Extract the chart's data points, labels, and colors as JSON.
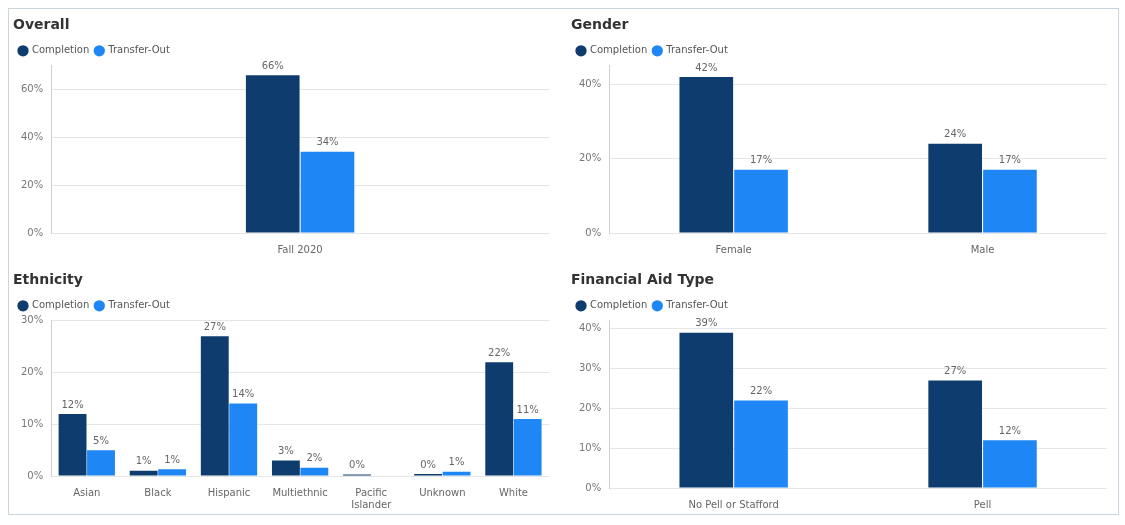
{
  "chart_data": [
    {
      "type": "bar",
      "title": "Overall",
      "categories": [
        "Fall 2020"
      ],
      "series": [
        {
          "name": "Completion",
          "color": "#0f3c6e",
          "values": [
            66
          ],
          "value_labels": [
            "66%"
          ]
        },
        {
          "name": "Transfer-Out",
          "color": "#1e86f5",
          "values": [
            34
          ],
          "value_labels": [
            "34%"
          ]
        }
      ],
      "ylim": [
        0,
        70
      ],
      "yticks": [
        {
          "value": 0,
          "label": "0%"
        },
        {
          "value": 20,
          "label": "20%"
        },
        {
          "value": 40,
          "label": "40%"
        },
        {
          "value": 60,
          "label": "60%"
        }
      ],
      "grid": "y",
      "legend": "top left"
    },
    {
      "type": "bar",
      "title": "Gender",
      "categories": [
        "Female",
        "Male"
      ],
      "series": [
        {
          "name": "Completion",
          "color": "#0f3c6e",
          "values": [
            42,
            24
          ],
          "value_labels": [
            "42%",
            "24%"
          ]
        },
        {
          "name": "Transfer-Out",
          "color": "#1e86f5",
          "values": [
            17,
            17
          ],
          "value_labels": [
            "17%",
            "17%"
          ]
        }
      ],
      "ylim": [
        0,
        45
      ],
      "yticks": [
        {
          "value": 0,
          "label": "0%"
        },
        {
          "value": 20,
          "label": "20%"
        },
        {
          "value": 40,
          "label": "40%"
        }
      ],
      "grid": "y",
      "legend": "top left"
    },
    {
      "type": "bar",
      "title": "Ethnicity",
      "categories": [
        "Asian",
        "Black",
        "Hispanic",
        "Multiethnic",
        "Pacific Islander",
        "Unknown",
        "White"
      ],
      "series": [
        {
          "name": "Completion",
          "color": "#0f3c6e",
          "values": [
            12,
            1,
            27,
            3,
            0.3,
            0.4,
            22
          ],
          "value_labels": [
            "12%",
            "1%",
            "27%",
            "3%",
            "0%",
            "0%",
            "22%"
          ]
        },
        {
          "name": "Transfer-Out",
          "color": "#1e86f5",
          "values": [
            5,
            1.3,
            14,
            1.6,
            null,
            0.8,
            11
          ],
          "value_labels": [
            "5%",
            "1%",
            "14%",
            "2%",
            null,
            "1%",
            "11%"
          ]
        }
      ],
      "ylim": [
        0,
        30
      ],
      "yticks": [
        {
          "value": 0,
          "label": "0%"
        },
        {
          "value": 10,
          "label": "10%"
        },
        {
          "value": 20,
          "label": "20%"
        },
        {
          "value": 30,
          "label": "30%"
        }
      ],
      "grid": "y",
      "legend": "top left"
    },
    {
      "type": "bar",
      "title": "Financial Aid Type",
      "categories": [
        "No Pell or Stafford",
        "Pell"
      ],
      "series": [
        {
          "name": "Completion",
          "color": "#0f3c6e",
          "values": [
            39,
            27
          ],
          "value_labels": [
            "39%",
            "27%"
          ]
        },
        {
          "name": "Transfer-Out",
          "color": "#1e86f5",
          "values": [
            22,
            12
          ],
          "value_labels": [
            "22%",
            "12%"
          ]
        }
      ],
      "ylim": [
        0,
        42
      ],
      "yticks": [
        {
          "value": 0,
          "label": "0%"
        },
        {
          "value": 10,
          "label": "10%"
        },
        {
          "value": 20,
          "label": "20%"
        },
        {
          "value": 30,
          "label": "30%"
        },
        {
          "value": 40,
          "label": "40%"
        }
      ],
      "grid": "y",
      "legend": "top left"
    }
  ]
}
